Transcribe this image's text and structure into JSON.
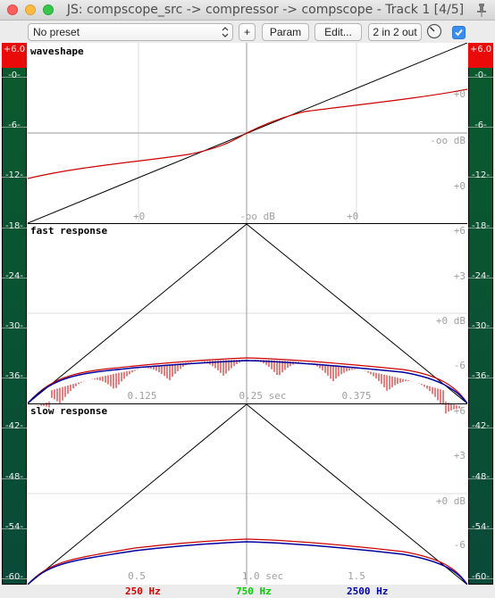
{
  "window": {
    "title": "JS: compscope_src -> compressor -> compscope - Track 1 [4/5]"
  },
  "toolbar": {
    "preset": "No preset",
    "add_label": "+",
    "param_label": "Param",
    "edit_label": "Edit...",
    "io_label": "2 in 2 out",
    "enabled": true
  },
  "meter": {
    "clip_label": "+6.0",
    "labels": [
      "-0-",
      "-6-",
      "-12-",
      "-18-",
      "-24-",
      "-30-",
      "-36-",
      "-42-",
      "-48-",
      "-54-",
      "-60-"
    ],
    "right_labels": [
      "-0-",
      "-6-",
      "-12-",
      "-18-",
      "-24-",
      "-30-",
      "-36-",
      "-42-",
      "-48-",
      "-54-",
      "-60-"
    ]
  },
  "panels": {
    "waveshape": {
      "title": "waveshape",
      "right_labels": [
        "+0",
        "-oo dB",
        "+0"
      ],
      "bottom_labels": [
        "+0",
        "-oo dB",
        "+0"
      ]
    },
    "fast": {
      "title": "fast response",
      "right_labels": [
        "+6",
        "+3",
        "+0 dB",
        "-6"
      ],
      "time_labels": [
        "0.125",
        "0.25 sec",
        "0.375"
      ]
    },
    "slow": {
      "title": "slow response",
      "right_labels": [
        "+6",
        "+3",
        "+0 dB",
        "-6"
      ],
      "time_labels": [
        "0.5",
        "1.0 sec",
        "1.5"
      ]
    }
  },
  "legend": [
    {
      "label": "250 Hz",
      "color": "#d40000"
    },
    {
      "label": "750 Hz",
      "color": "#00d000"
    },
    {
      "label": "2500 Hz",
      "color": "#0000b0"
    }
  ],
  "colors": {
    "curve_red": "#cc0000",
    "curve_blue": "#0000a0",
    "line_black": "#000000",
    "meter_clip": "#ea0a0a",
    "meter_green": "#0a5a2e"
  }
}
